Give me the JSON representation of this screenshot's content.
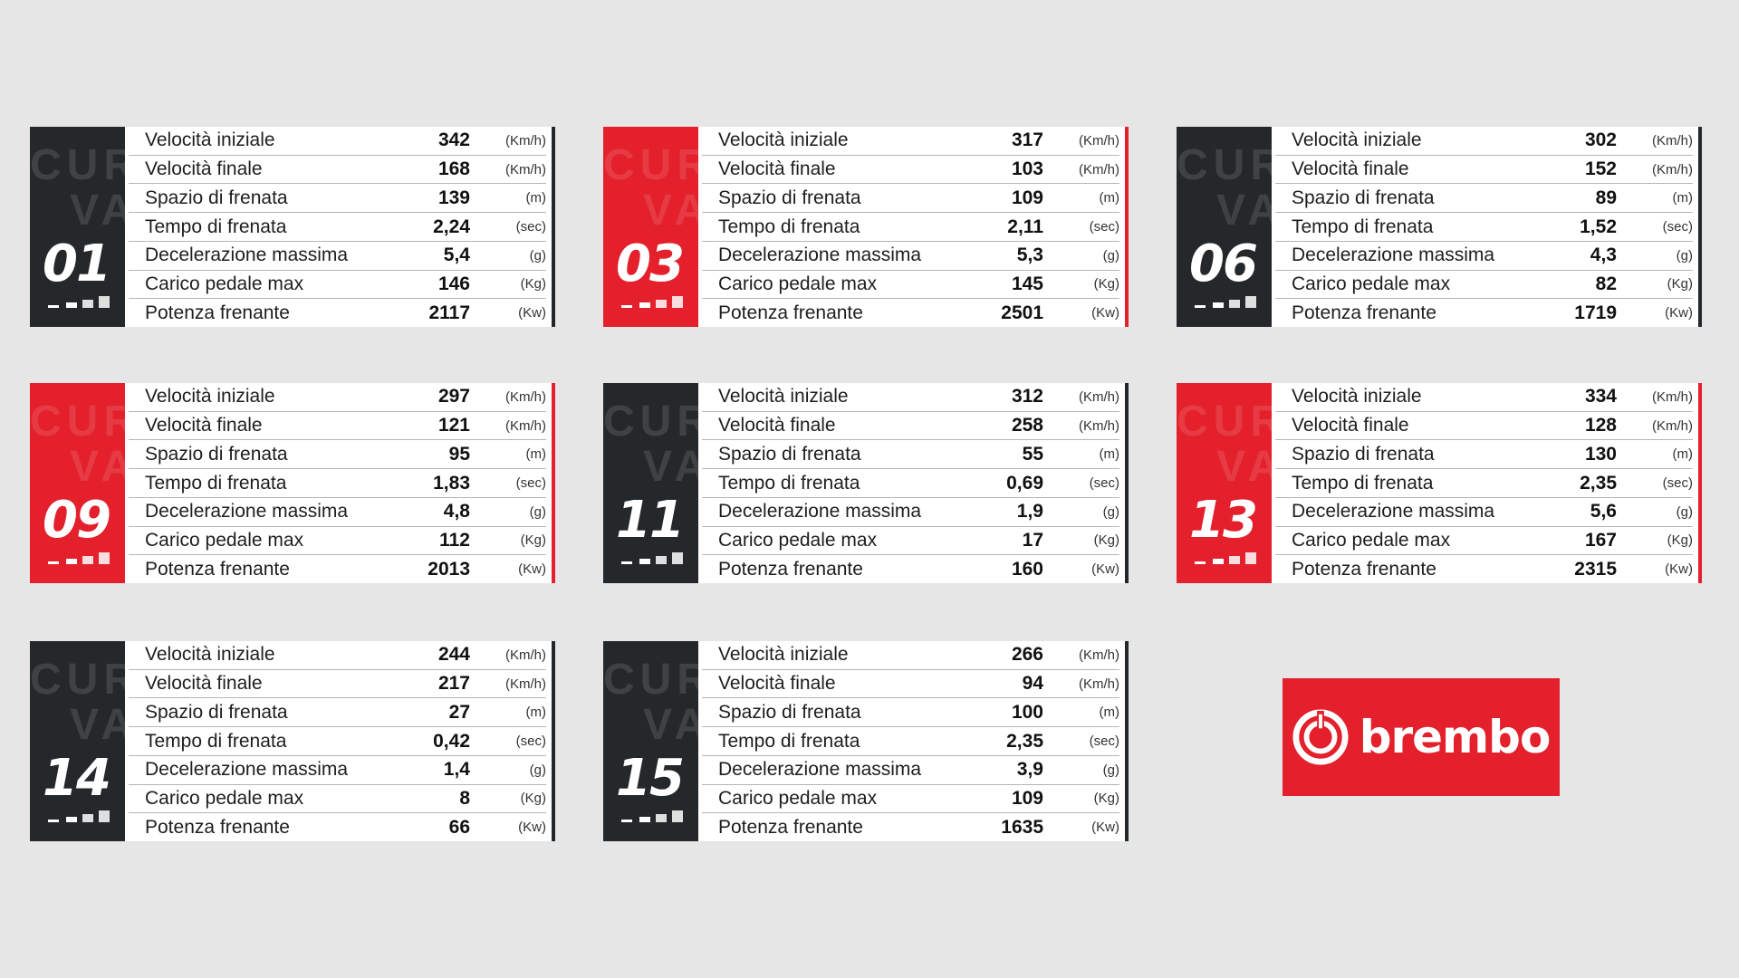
{
  "labels": {
    "curva_line1": "CUR",
    "curva_line2": "VA"
  },
  "rows_labels": [
    "Velocità iniziale",
    "Velocità finale",
    "Spazio di frenata",
    "Tempo di frenata",
    "Decelerazione massima",
    "Carico pedale max",
    "Potenza frenante"
  ],
  "units": [
    "(Km/h)",
    "(Km/h)",
    "(m)",
    "(sec)",
    "(g)",
    "(Kg)",
    "(Kw)"
  ],
  "colors": {
    "dark": "#25282b",
    "red": "#e3202b",
    "background": "#e6e6e6"
  },
  "curves": [
    {
      "number": "01",
      "theme": "dark",
      "values": [
        "342",
        "168",
        "139",
        "2,24",
        "5,4",
        "146",
        "2117"
      ]
    },
    {
      "number": "03",
      "theme": "red",
      "values": [
        "317",
        "103",
        "109",
        "2,11",
        "5,3",
        "145",
        "2501"
      ]
    },
    {
      "number": "06",
      "theme": "dark",
      "values": [
        "302",
        "152",
        "89",
        "1,52",
        "4,3",
        "82",
        "1719"
      ]
    },
    {
      "number": "09",
      "theme": "red",
      "values": [
        "297",
        "121",
        "95",
        "1,83",
        "4,8",
        "112",
        "2013"
      ]
    },
    {
      "number": "11",
      "theme": "dark",
      "values": [
        "312",
        "258",
        "55",
        "0,69",
        "1,9",
        "17",
        "160"
      ]
    },
    {
      "number": "13",
      "theme": "red",
      "values": [
        "334",
        "128",
        "130",
        "2,35",
        "5,6",
        "167",
        "2315"
      ]
    },
    {
      "number": "14",
      "theme": "dark",
      "values": [
        "244",
        "217",
        "27",
        "0,42",
        "1,4",
        "8",
        "66"
      ]
    },
    {
      "number": "15",
      "theme": "dark",
      "values": [
        "266",
        "94",
        "100",
        "2,35",
        "3,9",
        "109",
        "1635"
      ]
    }
  ],
  "logo": {
    "wordmark": "brembo",
    "icon": "brembo-logo-icon"
  }
}
